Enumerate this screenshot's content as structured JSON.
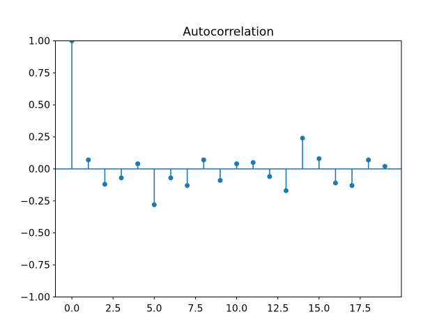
{
  "chart_data": {
    "type": "stem",
    "title": "Autocorrelation",
    "xlabel": "",
    "ylabel": "",
    "x": [
      0,
      1,
      2,
      3,
      4,
      5,
      6,
      7,
      8,
      9,
      10,
      11,
      12,
      13,
      14,
      15,
      16,
      17,
      18,
      19
    ],
    "values": [
      1.0,
      0.07,
      -0.12,
      -0.07,
      0.04,
      -0.28,
      -0.07,
      -0.13,
      0.07,
      -0.09,
      0.04,
      0.05,
      -0.06,
      -0.17,
      0.24,
      0.08,
      -0.11,
      -0.13,
      0.07,
      0.02
    ],
    "baseline": 0,
    "xlim": [
      -1,
      20
    ],
    "ylim": [
      -1,
      1
    ],
    "xticks": [
      0,
      2.5,
      5,
      7.5,
      10,
      12.5,
      15,
      17.5
    ],
    "xtick_labels": [
      "0.0",
      "2.5",
      "5.0",
      "7.5",
      "10.0",
      "12.5",
      "15.0",
      "17.5"
    ],
    "yticks": [
      -1,
      -0.75,
      -0.5,
      -0.25,
      0,
      0.25,
      0.5,
      0.75,
      1
    ],
    "ytick_labels": [
      "−1.00",
      "−0.75",
      "−0.50",
      "−0.25",
      "0.00",
      "0.25",
      "0.50",
      "0.75",
      "1.00"
    ],
    "grid": false,
    "legend": null,
    "series_color": "#1f77b4",
    "axis_color": "#000000",
    "background_color": "#ffffff"
  }
}
